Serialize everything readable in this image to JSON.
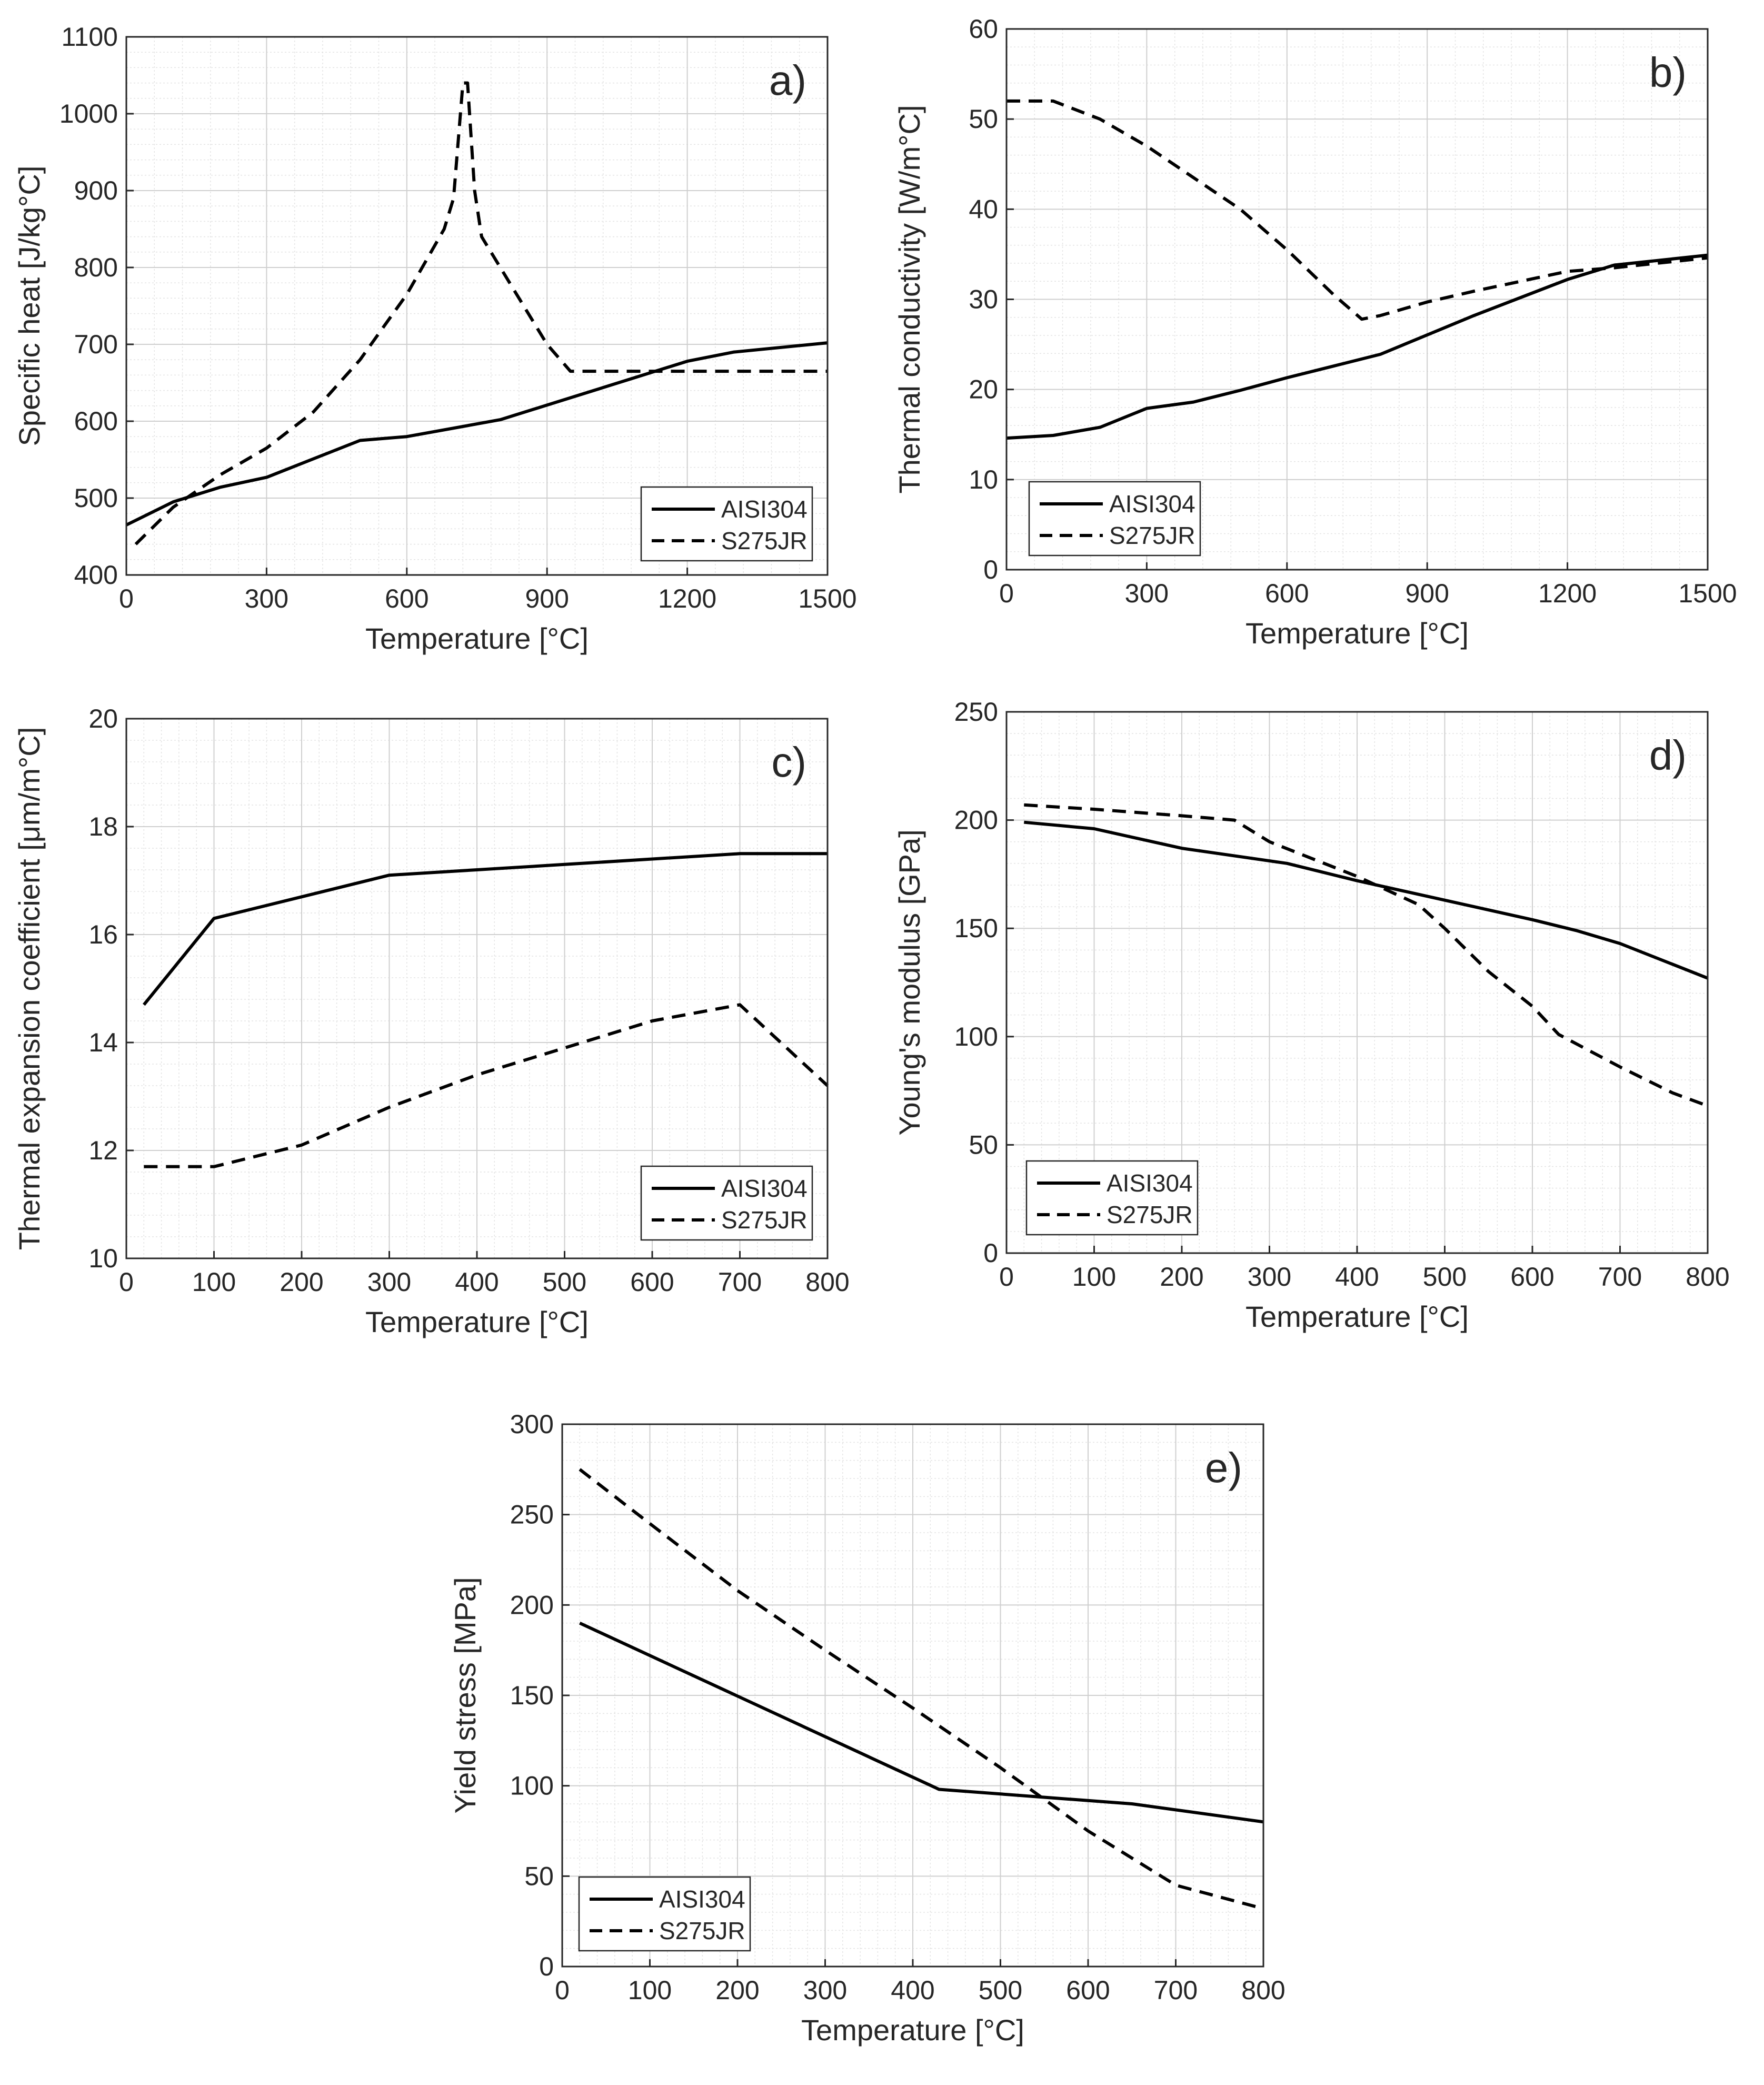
{
  "figure": {
    "legend_position": "bottom-right (panels a-d), bottom-left (panel e)",
    "grid": "major and minor",
    "line_color": "#000000"
  },
  "chart_data": [
    {
      "id": "a",
      "type": "line",
      "panel_label": "a)",
      "xlabel": "Temperature [°C]",
      "ylabel": "Specific heat [J/kg°C]",
      "xlim": [
        0,
        1500
      ],
      "ylim": [
        400,
        1100
      ],
      "xticks": [
        0,
        300,
        600,
        900,
        1200,
        1500
      ],
      "yticks": [
        400,
        500,
        600,
        700,
        800,
        900,
        1000,
        1100
      ],
      "legend_position": "bottom-right",
      "series": [
        {
          "name": "AISI304",
          "style": "solid",
          "x": [
            0,
            100,
            200,
            300,
            400,
            500,
            600,
            800,
            1000,
            1200,
            1300,
            1500
          ],
          "y": [
            465,
            495,
            514,
            527,
            551,
            575,
            580,
            602,
            640,
            678,
            690,
            702
          ]
        },
        {
          "name": "S275JR",
          "style": "dashed",
          "x": [
            20,
            100,
            200,
            300,
            400,
            500,
            600,
            680,
            700,
            720,
            730,
            745,
            760,
            800,
            900,
            950,
            1000,
            1500
          ],
          "y": [
            440,
            488,
            530,
            565,
            612,
            680,
            765,
            850,
            890,
            1040,
            1040,
            900,
            840,
            800,
            700,
            665,
            665,
            665
          ]
        }
      ]
    },
    {
      "id": "b",
      "type": "line",
      "panel_label": "b)",
      "xlabel": "Temperature [°C]",
      "ylabel": "Thermal conductivity [W/m°C]",
      "xlim": [
        0,
        1500
      ],
      "ylim": [
        0,
        60
      ],
      "xticks": [
        0,
        300,
        600,
        900,
        1200,
        1500
      ],
      "yticks": [
        0,
        10,
        20,
        30,
        40,
        50,
        60
      ],
      "legend_position": "bottom-right",
      "series": [
        {
          "name": "AISI304",
          "style": "solid",
          "x": [
            0,
            100,
            200,
            300,
            400,
            500,
            600,
            700,
            800,
            1000,
            1200,
            1300,
            1500
          ],
          "y": [
            14.6,
            14.9,
            15.8,
            17.9,
            18.6,
            19.9,
            21.3,
            22.6,
            23.9,
            28.2,
            32.2,
            33.8,
            34.9
          ]
        },
        {
          "name": "S275JR",
          "style": "dashed",
          "x": [
            0,
            100,
            200,
            300,
            400,
            500,
            600,
            700,
            760,
            800,
            900,
            1000,
            1100,
            1200,
            1300,
            1500
          ],
          "y": [
            52,
            52,
            50,
            47,
            43.5,
            40,
            35.5,
            30.5,
            27.8,
            28.2,
            29.7,
            30.9,
            32,
            33.1,
            33.5,
            34.6
          ]
        }
      ]
    },
    {
      "id": "c",
      "type": "line",
      "panel_label": "c)",
      "xlabel": "Temperature [°C]",
      "ylabel": "Thermal expansion coefficient [μm/m°C]",
      "xlim": [
        0,
        800
      ],
      "ylim": [
        10,
        20
      ],
      "xticks": [
        0,
        100,
        200,
        300,
        400,
        500,
        600,
        700,
        800
      ],
      "yticks": [
        10,
        12,
        14,
        16,
        18,
        20
      ],
      "legend_position": "bottom-right",
      "series": [
        {
          "name": "AISI304",
          "style": "solid",
          "x": [
            20,
            100,
            200,
            300,
            400,
            500,
            600,
            700,
            800
          ],
          "y": [
            14.7,
            16.3,
            16.7,
            17.1,
            17.2,
            17.3,
            17.4,
            17.5,
            17.5
          ]
        },
        {
          "name": "S275JR",
          "style": "dashed",
          "x": [
            20,
            100,
            200,
            300,
            400,
            500,
            600,
            700,
            800
          ],
          "y": [
            11.7,
            11.7,
            12.1,
            12.8,
            13.4,
            13.9,
            14.4,
            14.7,
            13.2
          ]
        }
      ]
    },
    {
      "id": "d",
      "type": "line",
      "panel_label": "d)",
      "xlabel": "Temperature [°C]",
      "ylabel": "Young's modulus [GPa]",
      "xlim": [
        0,
        800
      ],
      "ylim": [
        0,
        250
      ],
      "xticks": [
        0,
        100,
        200,
        300,
        400,
        500,
        600,
        700,
        800
      ],
      "yticks": [
        0,
        50,
        100,
        150,
        200,
        250
      ],
      "legend_position": "bottom-right",
      "series": [
        {
          "name": "AISI304",
          "style": "solid",
          "x": [
            20,
            100,
            200,
            320,
            400,
            500,
            600,
            650,
            700,
            800
          ],
          "y": [
            199,
            196,
            187,
            180,
            172,
            163,
            154,
            149,
            143,
            127
          ]
        },
        {
          "name": "S275JR",
          "style": "dashed",
          "x": [
            20,
            100,
            200,
            260,
            300,
            400,
            470,
            500,
            550,
            600,
            630,
            700,
            760,
            800
          ],
          "y": [
            207,
            205,
            202,
            200,
            190,
            174,
            161,
            150,
            130,
            114,
            101,
            86,
            74,
            68
          ]
        }
      ]
    },
    {
      "id": "e",
      "type": "line",
      "panel_label": "e)",
      "xlabel": "Temperature [°C]",
      "ylabel": "Yield stress [MPa]",
      "xlim": [
        0,
        800
      ],
      "ylim": [
        0,
        300
      ],
      "xticks": [
        0,
        100,
        200,
        300,
        400,
        500,
        600,
        700,
        800
      ],
      "yticks": [
        0,
        50,
        100,
        150,
        200,
        250,
        300
      ],
      "legend_position": "bottom-left",
      "series": [
        {
          "name": "AISI304",
          "style": "solid",
          "x": [
            20,
            430,
            650,
            800
          ],
          "y": [
            190,
            98,
            90,
            80
          ]
        },
        {
          "name": "S275JR",
          "style": "dashed",
          "x": [
            20,
            100,
            200,
            300,
            400,
            500,
            600,
            700,
            800
          ],
          "y": [
            275,
            245,
            208,
            175,
            143,
            110,
            75,
            45,
            32
          ]
        }
      ]
    }
  ]
}
